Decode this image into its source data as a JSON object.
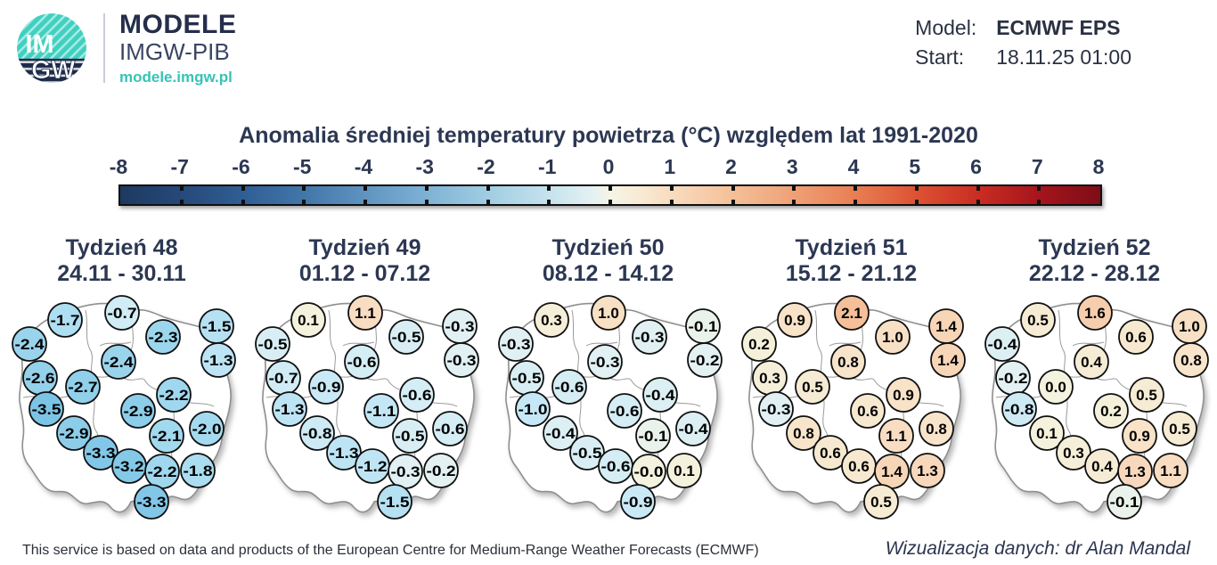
{
  "header": {
    "logo": {
      "circle_text_line1": "IM",
      "circle_text_line2": "GW",
      "teal": "#3fd0c0",
      "navy": "#1e2a4a",
      "brand_line1": "MODELE",
      "brand_line2": "IMGW-PIB",
      "brand_url": "modele.imgw.pl"
    },
    "model_label": "Model:",
    "model_value": "ECMWF EPS",
    "start_label": "Start:",
    "start_value": "18.11.25 01:00"
  },
  "title": "Anomalia średniej temperatury powietrza (°C) względem lat 1991-2020",
  "chart_data": {
    "type": "scatter",
    "title": "Anomalia średniej temperatury powietrza (°C) względem lat 1991-2020",
    "units": "°C",
    "baseline_period": "1991-2020",
    "colorbar": {
      "min": -8,
      "max": 8,
      "tick_labels": [
        "-8",
        "-7",
        "-6",
        "-5",
        "-4",
        "-3",
        "-2",
        "-1",
        "0",
        "1",
        "2",
        "3",
        "4",
        "5",
        "6",
        "7",
        "8"
      ],
      "gradient_stops": [
        {
          "v": -8,
          "c": "#1d3a60"
        },
        {
          "v": -7,
          "c": "#26497a"
        },
        {
          "v": -6,
          "c": "#305e94"
        },
        {
          "v": -5,
          "c": "#4276a9"
        },
        {
          "v": -4,
          "c": "#5f94c1"
        },
        {
          "v": -3,
          "c": "#7eb2d4"
        },
        {
          "v": -2,
          "c": "#a0cde2"
        },
        {
          "v": -1,
          "c": "#c6e2ee"
        },
        {
          "v": -0.3,
          "c": "#e4f1f2"
        },
        {
          "v": 0,
          "c": "#f5f4e6"
        },
        {
          "v": 0.5,
          "c": "#f9ead4"
        },
        {
          "v": 1,
          "c": "#f8dcbe"
        },
        {
          "v": 2,
          "c": "#f4c098"
        },
        {
          "v": 3,
          "c": "#efa076"
        },
        {
          "v": 4,
          "c": "#e87e53"
        },
        {
          "v": 5,
          "c": "#dd5233"
        },
        {
          "v": 6,
          "c": "#c92d22"
        },
        {
          "v": 7,
          "c": "#a6151c"
        },
        {
          "v": 8,
          "c": "#7d0d17"
        }
      ],
      "circle_color_anchors": [
        {
          "v": -4,
          "c": "#6fbde2"
        },
        {
          "v": -2,
          "c": "#a4daef"
        },
        {
          "v": -1,
          "c": "#c6e8f6"
        },
        {
          "v": -0.15,
          "c": "#e5f2f2"
        },
        {
          "v": 0,
          "c": "#f3f3df"
        },
        {
          "v": 0.6,
          "c": "#f7e9d0"
        },
        {
          "v": 1.2,
          "c": "#f8dbc0"
        },
        {
          "v": 2.5,
          "c": "#f2b287"
        }
      ]
    },
    "point_positions": [
      [
        73,
        33
      ],
      [
        137,
        25
      ],
      [
        183,
        52
      ],
      [
        243,
        40
      ],
      [
        33,
        60
      ],
      [
        133,
        80
      ],
      [
        245,
        78
      ],
      [
        45,
        98
      ],
      [
        93,
        108
      ],
      [
        195,
        117
      ],
      [
        52,
        133
      ],
      [
        155,
        135
      ],
      [
        83,
        160
      ],
      [
        187,
        163
      ],
      [
        232,
        155
      ],
      [
        113,
        182
      ],
      [
        145,
        197
      ],
      [
        182,
        203
      ],
      [
        222,
        202
      ],
      [
        170,
        237
      ]
    ],
    "series": [
      {
        "name": "Tydzień 48",
        "date_range": "24.11 - 30.11",
        "values": [
          "-1.7",
          "-0.7",
          "-2.3",
          "-1.5",
          "-2.4",
          "-2.4",
          "-1.3",
          "-2.6",
          "-2.7",
          "-2.2",
          "-3.5",
          "-2.9",
          "-2.9",
          "-2.1",
          "-2.0",
          "-3.3",
          "-3.2",
          "-2.2",
          "-1.8",
          "-3.3"
        ]
      },
      {
        "name": "Tydzień 49",
        "date_range": "01.12 - 07.12",
        "values": [
          "0.1",
          "1.1",
          "-0.5",
          "-0.3",
          "-0.5",
          "-0.6",
          "-0.3",
          "-0.7",
          "-0.9",
          "-0.6",
          "-1.3",
          "-1.1",
          "-0.8",
          "-0.5",
          "-0.6",
          "-1.3",
          "-1.2",
          "-0.3",
          "-0.2",
          "-1.5"
        ]
      },
      {
        "name": "Tydzień 50",
        "date_range": "08.12 - 14.12",
        "values": [
          "0.3",
          "1.0",
          "-0.3",
          "-0.1",
          "-0.3",
          "-0.3",
          "-0.2",
          "-0.5",
          "-0.6",
          "-0.4",
          "-1.0",
          "-0.6",
          "-0.4",
          "-0.1",
          "-0.4",
          "-0.5",
          "-0.6",
          "-0.0",
          "0.1",
          "-0.9"
        ]
      },
      {
        "name": "Tydzień 51",
        "date_range": "15.12 - 21.12",
        "values": [
          "0.9",
          "2.1",
          "1.0",
          "1.4",
          "0.2",
          "0.8",
          "1.4",
          "0.3",
          "0.5",
          "0.9",
          "-0.3",
          "0.6",
          "0.8",
          "1.1",
          "0.8",
          "0.6",
          "0.6",
          "1.4",
          "1.3",
          "0.5"
        ]
      },
      {
        "name": "Tydzień 52",
        "date_range": "22.12 - 28.12",
        "values": [
          "0.5",
          "1.6",
          "0.6",
          "1.0",
          "-0.4",
          "0.4",
          "0.8",
          "-0.2",
          "0.0",
          "0.5",
          "-0.8",
          "0.2",
          "0.1",
          "0.9",
          "0.5",
          "0.3",
          "0.4",
          "1.3",
          "1.1",
          "-0.1"
        ]
      }
    ]
  },
  "footer": {
    "left": "This service is based on data and products of the European Centre for Medium-Range Weather Forecasts (ECMWF)",
    "right": "Wizualizacja danych: dr Alan Mandal"
  }
}
